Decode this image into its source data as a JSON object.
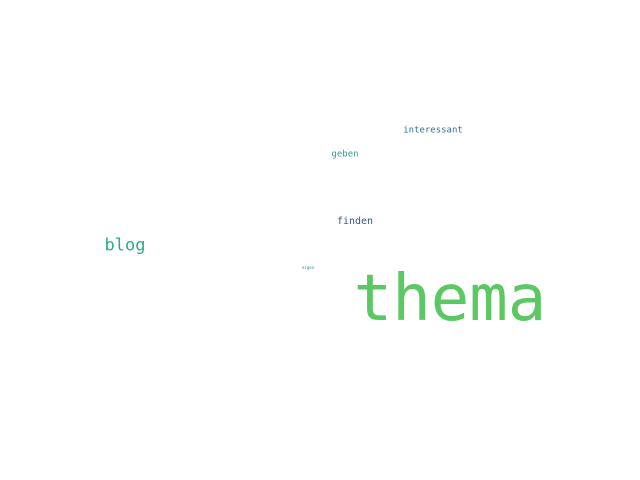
{
  "word_cloud": {
    "words": [
      {
        "id": "thema",
        "text": "thema",
        "color": "#5cc863"
      },
      {
        "id": "blog",
        "text": "blog",
        "color": "#29af7f"
      },
      {
        "id": "finden",
        "text": "finden",
        "color": "#3b528b"
      },
      {
        "id": "geben",
        "text": "geben",
        "color": "#2a9d8f"
      },
      {
        "id": "interessant",
        "text": "interessant",
        "color": "#2c728e"
      },
      {
        "id": "eigen",
        "text": "eigen",
        "color": "#21908d"
      }
    ]
  }
}
